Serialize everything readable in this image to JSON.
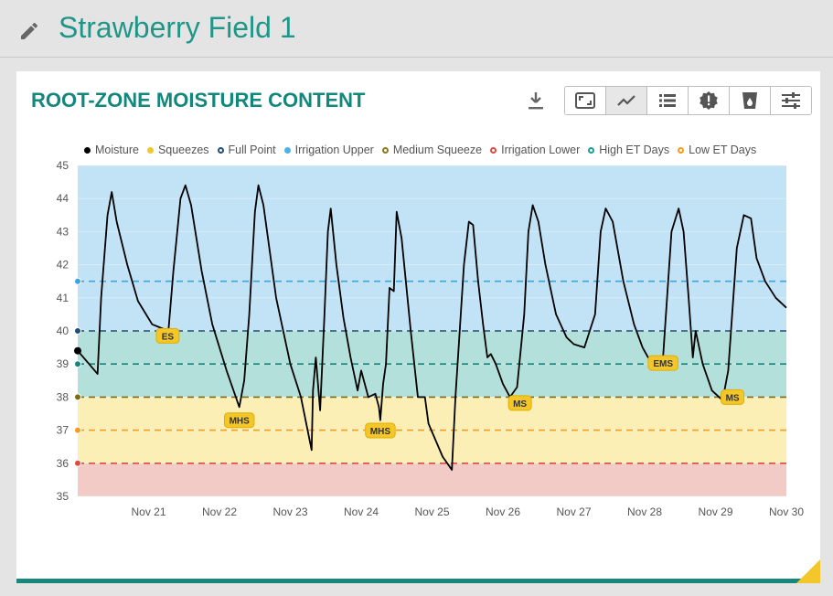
{
  "page": {
    "title": "Strawberry Field 1"
  },
  "card": {
    "title": "ROOT-ZONE MOISTURE CONTENT"
  },
  "toolbar": [
    {
      "name": "fullscreen-button",
      "icon": "expand-icon"
    },
    {
      "name": "line-view-button",
      "icon": "line-chart-icon",
      "active": true
    },
    {
      "name": "table-view-button",
      "icon": "list-icon"
    },
    {
      "name": "alerts-button",
      "icon": "alert-badge-icon"
    },
    {
      "name": "irrigation-button",
      "icon": "water-glass-icon"
    },
    {
      "name": "settings-button",
      "icon": "sliders-icon"
    }
  ],
  "legend": [
    {
      "label": "Moisture",
      "color": "#000000",
      "filled": true
    },
    {
      "label": "Squeezes",
      "color": "#f3c629",
      "filled": true
    },
    {
      "label": "Full Point",
      "color": "#1f4e79",
      "filled": false
    },
    {
      "label": "Irrigation Upper",
      "color": "#4ab3e6",
      "filled": true
    },
    {
      "label": "Medium Squeeze",
      "color": "#8a7b1a",
      "filled": false
    },
    {
      "label": "Irrigation Lower",
      "color": "#e04a3f",
      "filled": false
    },
    {
      "label": "High ET Days",
      "color": "#1a9e8f",
      "filled": false
    },
    {
      "label": "Low ET Days",
      "color": "#f39c1e",
      "filled": false
    }
  ],
  "chart_data": {
    "type": "line",
    "ylim": [
      35,
      45
    ],
    "yticks": [
      "45",
      "44",
      "43",
      "42",
      "41",
      "40",
      "39",
      "38",
      "37",
      "36",
      "35"
    ],
    "xlim": [
      20.0,
      30.0
    ],
    "xticks": [
      {
        "x": 21,
        "label": "Nov 21"
      },
      {
        "x": 22,
        "label": "Nov 22"
      },
      {
        "x": 23,
        "label": "Nov 23"
      },
      {
        "x": 24,
        "label": "Nov 24"
      },
      {
        "x": 25,
        "label": "Nov 25"
      },
      {
        "x": 26,
        "label": "Nov 26"
      },
      {
        "x": 27,
        "label": "Nov 27"
      },
      {
        "x": 28,
        "label": "Nov 28"
      },
      {
        "x": 29,
        "label": "Nov 29"
      },
      {
        "x": 30,
        "label": "Nov 30"
      }
    ],
    "bands": [
      {
        "from": 40,
        "to": 45,
        "color": "#c2e3f6"
      },
      {
        "from": 38,
        "to": 40,
        "color": "#b3e0db"
      },
      {
        "from": 36,
        "to": 38,
        "color": "#fcefb6"
      },
      {
        "from": 35,
        "to": 36,
        "color": "#f2cac6"
      }
    ],
    "thresholds": [
      {
        "name": "Irrigation Upper",
        "value": 41.5,
        "color": "#3aa6dd"
      },
      {
        "name": "Full Point",
        "value": 40,
        "color": "#1f4e79"
      },
      {
        "name": "High ET Days",
        "value": 39,
        "color": "#12887b"
      },
      {
        "name": "Medium Squeeze",
        "value": 38,
        "color": "#7d6c14"
      },
      {
        "name": "Low ET Days",
        "value": 37,
        "color": "#f39c1e"
      },
      {
        "name": "Irrigation Lower",
        "value": 36,
        "color": "#e04a3f"
      }
    ],
    "series": [
      {
        "name": "Moisture",
        "points": [
          [
            20.0,
            39.4
          ],
          [
            20.28,
            38.7
          ],
          [
            20.33,
            41.0
          ],
          [
            20.42,
            43.5
          ],
          [
            20.48,
            44.2
          ],
          [
            20.55,
            43.3
          ],
          [
            20.7,
            42.0
          ],
          [
            20.85,
            40.9
          ],
          [
            21.05,
            40.2
          ],
          [
            21.28,
            40.0
          ],
          [
            21.35,
            41.8
          ],
          [
            21.45,
            44.0
          ],
          [
            21.52,
            44.4
          ],
          [
            21.6,
            43.8
          ],
          [
            21.75,
            41.8
          ],
          [
            21.9,
            40.2
          ],
          [
            22.1,
            38.8
          ],
          [
            22.28,
            37.7
          ],
          [
            22.35,
            38.5
          ],
          [
            22.42,
            40.5
          ],
          [
            22.5,
            43.6
          ],
          [
            22.55,
            44.4
          ],
          [
            22.62,
            43.8
          ],
          [
            22.8,
            41.0
          ],
          [
            23.0,
            39.0
          ],
          [
            23.15,
            38.0
          ],
          [
            23.3,
            36.4
          ],
          [
            23.32,
            38.2
          ],
          [
            23.36,
            39.2
          ],
          [
            23.42,
            37.6
          ],
          [
            23.48,
            40.4
          ],
          [
            23.53,
            43.0
          ],
          [
            23.57,
            43.7
          ],
          [
            23.65,
            42.0
          ],
          [
            23.75,
            40.4
          ],
          [
            23.85,
            39.2
          ],
          [
            23.95,
            38.2
          ],
          [
            24.0,
            38.8
          ],
          [
            24.1,
            38.0
          ],
          [
            24.2,
            38.1
          ],
          [
            24.25,
            37.7
          ],
          [
            24.27,
            37.3
          ],
          [
            24.27,
            37.3
          ],
          [
            24.31,
            38.4
          ],
          [
            24.35,
            39.0
          ],
          [
            24.4,
            41.3
          ],
          [
            24.46,
            41.2
          ],
          [
            24.5,
            43.6
          ],
          [
            24.57,
            42.8
          ],
          [
            24.7,
            40.0
          ],
          [
            24.8,
            38.0
          ],
          [
            24.9,
            38.0
          ],
          [
            24.95,
            37.2
          ],
          [
            25.15,
            36.2
          ],
          [
            25.28,
            35.8
          ],
          [
            25.33,
            38.0
          ],
          [
            25.45,
            42.0
          ],
          [
            25.52,
            43.3
          ],
          [
            25.58,
            43.2
          ],
          [
            25.65,
            41.5
          ],
          [
            25.72,
            40.2
          ],
          [
            25.78,
            39.2
          ],
          [
            25.83,
            39.3
          ],
          [
            25.9,
            39.0
          ],
          [
            26.0,
            38.4
          ],
          [
            26.1,
            38.0
          ],
          [
            26.2,
            38.3
          ],
          [
            26.3,
            40.5
          ],
          [
            26.36,
            43.0
          ],
          [
            26.42,
            43.8
          ],
          [
            26.5,
            43.3
          ],
          [
            26.6,
            42.0
          ],
          [
            26.75,
            40.5
          ],
          [
            26.9,
            39.8
          ],
          [
            27.0,
            39.6
          ],
          [
            27.15,
            39.5
          ],
          [
            27.3,
            40.5
          ],
          [
            27.38,
            43.0
          ],
          [
            27.45,
            43.7
          ],
          [
            27.55,
            43.3
          ],
          [
            27.7,
            41.5
          ],
          [
            27.85,
            40.2
          ],
          [
            27.97,
            39.5
          ],
          [
            28.1,
            39.0
          ],
          [
            28.25,
            38.9
          ],
          [
            28.3,
            40.5
          ],
          [
            28.38,
            43.0
          ],
          [
            28.48,
            43.7
          ],
          [
            28.55,
            43.0
          ],
          [
            28.62,
            41.0
          ],
          [
            28.68,
            39.2
          ],
          [
            28.72,
            40.0
          ],
          [
            28.82,
            39.0
          ],
          [
            28.95,
            38.2
          ],
          [
            29.1,
            37.9
          ],
          [
            29.18,
            38.8
          ],
          [
            29.3,
            42.5
          ],
          [
            29.4,
            43.5
          ],
          [
            29.5,
            43.4
          ],
          [
            29.58,
            42.2
          ],
          [
            29.7,
            41.5
          ],
          [
            29.85,
            41.0
          ],
          [
            30.0,
            40.7
          ]
        ]
      }
    ],
    "squeezes": [
      {
        "label": "ES",
        "x": 21.27,
        "y": 39.85
      },
      {
        "label": "MHS",
        "x": 22.28,
        "y": 37.3
      },
      {
        "label": "MHS",
        "x": 24.27,
        "y": 36.99
      },
      {
        "label": "MS",
        "x": 26.24,
        "y": 37.82
      },
      {
        "label": "EMS",
        "x": 28.26,
        "y": 39.03
      },
      {
        "label": "MS",
        "x": 29.24,
        "y": 38.0
      }
    ],
    "start_marker": {
      "x": 20.0,
      "y": 39.4
    }
  }
}
